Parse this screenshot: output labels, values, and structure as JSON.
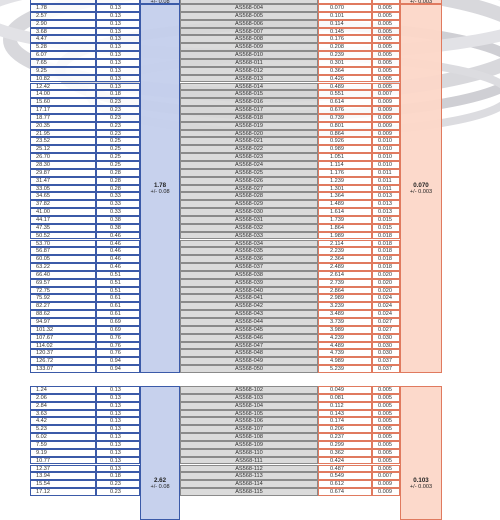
{
  "top_fragment": {
    "cross_section_mm_tol": "+/- 0.08",
    "cross_section_in_tol": "+/- 0.003"
  },
  "groups": [
    {
      "cross_section_mm": "1.78",
      "cross_section_mm_tol": "+/- 0.08",
      "cross_section_in": "0.070",
      "cross_section_in_tol": "+/- 0.003",
      "rows": [
        [
          "1.78",
          "0.13",
          "AS568-004",
          "0.070",
          "0.005"
        ],
        [
          "2.57",
          "0.13",
          "AS568-005",
          "0.101",
          "0.005"
        ],
        [
          "2.90",
          "0.13",
          "AS568-006",
          "0.114",
          "0.005"
        ],
        [
          "3.68",
          "0.13",
          "AS568-007",
          "0.145",
          "0.005"
        ],
        [
          "4.47",
          "0.13",
          "AS568-008",
          "0.176",
          "0.005"
        ],
        [
          "5.28",
          "0.13",
          "AS568-009",
          "0.208",
          "0.005"
        ],
        [
          "6.07",
          "0.13",
          "AS568-010",
          "0.239",
          "0.005"
        ],
        [
          "7.65",
          "0.13",
          "AS568-011",
          "0.301",
          "0.005"
        ],
        [
          "9.25",
          "0.13",
          "AS568-012",
          "0.364",
          "0.005"
        ],
        [
          "10.82",
          "0.13",
          "AS568-013",
          "0.426",
          "0.005"
        ],
        [
          "12.42",
          "0.13",
          "AS568-014",
          "0.489",
          "0.005"
        ],
        [
          "14.00",
          "0.18",
          "AS568-015",
          "0.551",
          "0.007"
        ],
        [
          "15.60",
          "0.23",
          "AS568-016",
          "0.614",
          "0.009"
        ],
        [
          "17.17",
          "0.23",
          "AS568-017",
          "0.676",
          "0.009"
        ],
        [
          "18.77",
          "0.23",
          "AS568-018",
          "0.739",
          "0.009"
        ],
        [
          "20.35",
          "0.23",
          "AS568-019",
          "0.801",
          "0.009"
        ],
        [
          "21.95",
          "0.23",
          "AS568-020",
          "0.864",
          "0.009"
        ],
        [
          "23.52",
          "0.25",
          "AS568-021",
          "0.926",
          "0.010"
        ],
        [
          "25.12",
          "0.25",
          "AS568-022",
          "0.989",
          "0.010"
        ],
        [
          "26.70",
          "0.25",
          "AS568-023",
          "1.051",
          "0.010"
        ],
        [
          "28.30",
          "0.25",
          "AS568-024",
          "1.114",
          "0.010"
        ],
        [
          "29.87",
          "0.28",
          "AS568-025",
          "1.176",
          "0.011"
        ],
        [
          "31.47",
          "0.28",
          "AS568-026",
          "1.239",
          "0.011"
        ],
        [
          "33.05",
          "0.28",
          "AS568-027",
          "1.301",
          "0.011"
        ],
        [
          "34.65",
          "0.33",
          "AS568-028",
          "1.364",
          "0.013"
        ],
        [
          "37.82",
          "0.33",
          "AS568-029",
          "1.489",
          "0.013"
        ],
        [
          "41.00",
          "0.33",
          "AS568-030",
          "1.614",
          "0.013"
        ],
        [
          "44.17",
          "0.38",
          "AS568-031",
          "1.739",
          "0.015"
        ],
        [
          "47.35",
          "0.38",
          "AS568-032",
          "1.864",
          "0.015"
        ],
        [
          "50.52",
          "0.46",
          "AS568-033",
          "1.989",
          "0.018"
        ],
        [
          "53.70",
          "0.46",
          "AS568-034",
          "2.114",
          "0.018"
        ],
        [
          "56.87",
          "0.46",
          "AS568-035",
          "2.239",
          "0.018"
        ],
        [
          "60.05",
          "0.46",
          "AS568-036",
          "2.364",
          "0.018"
        ],
        [
          "63.22",
          "0.46",
          "AS568-037",
          "2.489",
          "0.018"
        ],
        [
          "66.40",
          "0.51",
          "AS568-038",
          "2.614",
          "0.020"
        ],
        [
          "69.57",
          "0.51",
          "AS568-039",
          "2.739",
          "0.020"
        ],
        [
          "72.75",
          "0.51",
          "AS568-040",
          "2.864",
          "0.020"
        ],
        [
          "75.92",
          "0.61",
          "AS568-041",
          "2.989",
          "0.024"
        ],
        [
          "82.27",
          "0.61",
          "AS568-042",
          "3.239",
          "0.024"
        ],
        [
          "88.62",
          "0.61",
          "AS568-043",
          "3.489",
          "0.024"
        ],
        [
          "94.97",
          "0.69",
          "AS568-044",
          "3.739",
          "0.027"
        ],
        [
          "101.32",
          "0.69",
          "AS568-045",
          "3.989",
          "0.027"
        ],
        [
          "107.67",
          "0.76",
          "AS568-046",
          "4.239",
          "0.030"
        ],
        [
          "114.02",
          "0.76",
          "AS568-047",
          "4.489",
          "0.030"
        ],
        [
          "120.37",
          "0.76",
          "AS568-048",
          "4.739",
          "0.030"
        ],
        [
          "126.72",
          "0.94",
          "AS568-049",
          "4.989",
          "0.037"
        ],
        [
          "133.07",
          "0.94",
          "AS568-050",
          "5.239",
          "0.037"
        ]
      ]
    },
    {
      "cross_section_mm": "2.62",
      "cross_section_mm_tol": "+/- 0.08",
      "cross_section_in": "0.103",
      "cross_section_in_tol": "+/- 0.003",
      "rows": [
        [
          "1.24",
          "0.13",
          "AS568-102",
          "0.049",
          "0.005"
        ],
        [
          "2.06",
          "0.13",
          "AS568-103",
          "0.081",
          "0.005"
        ],
        [
          "2.84",
          "0.13",
          "AS568-104",
          "0.112",
          "0.005"
        ],
        [
          "3.63",
          "0.13",
          "AS568-105",
          "0.143",
          "0.005"
        ],
        [
          "4.42",
          "0.13",
          "AS568-106",
          "0.174",
          "0.005"
        ],
        [
          "5.23",
          "0.13",
          "AS568-107",
          "0.206",
          "0.005"
        ],
        [
          "6.02",
          "0.13",
          "AS568-108",
          "0.237",
          "0.005"
        ],
        [
          "7.59",
          "0.13",
          "AS568-109",
          "0.299",
          "0.005"
        ],
        [
          "9.19",
          "0.13",
          "AS568-110",
          "0.362",
          "0.005"
        ],
        [
          "10.77",
          "0.13",
          "AS568-111",
          "0.424",
          "0.005"
        ],
        [
          "12.37",
          "0.13",
          "AS568-112",
          "0.487",
          "0.005"
        ],
        [
          "13.94",
          "0.18",
          "AS568-113",
          "0.549",
          "0.007"
        ],
        [
          "15.54",
          "0.23",
          "AS568-114",
          "0.612",
          "0.009"
        ],
        [
          "17.12",
          "0.23",
          "AS568-115",
          "0.674",
          "0.009"
        ]
      ]
    }
  ]
}
